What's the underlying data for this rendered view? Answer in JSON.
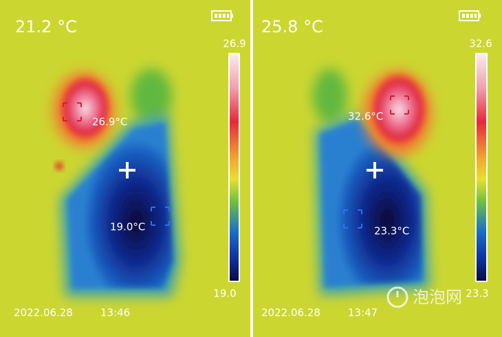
{
  "panels": [
    {
      "center_temp": "21.2 °C",
      "scale_max": "26.9",
      "scale_min": "19.0",
      "hot_label": "26.9°C",
      "cold_label": "19.0°C",
      "date": "2022.06.28",
      "time": "13:46"
    },
    {
      "center_temp": "25.8 °C",
      "scale_max": "32.6",
      "scale_min": "23.3",
      "hot_label": "32.6°C",
      "cold_label": "23.3°C",
      "date": "2022.06.28",
      "time": "13:47"
    }
  ],
  "watermark": "泡泡网"
}
